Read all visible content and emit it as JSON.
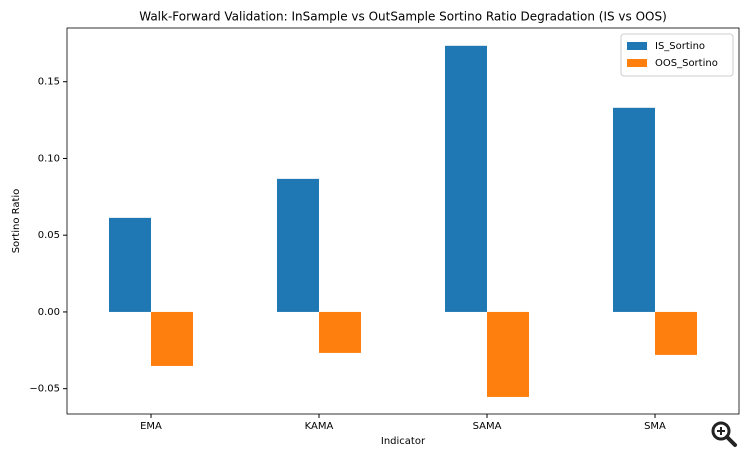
{
  "chart_data": {
    "type": "bar",
    "title": "Walk-Forward Validation: InSample vs OutSample Sortino Ratio Degradation (IS vs OOS)",
    "x_label": "Indicator",
    "y_label": "Sortino Ratio",
    "categories": [
      "EMA",
      "KAMA",
      "SAMA",
      "SMA"
    ],
    "series": [
      {
        "name": "IS_Sortino",
        "color": "#1f77b4",
        "values": [
          0.0613,
          0.0867,
          0.1734,
          0.133
        ]
      },
      {
        "name": "OOS_Sortino",
        "color": "#ff7f0e",
        "values": [
          -0.0352,
          -0.0267,
          -0.0554,
          -0.028
        ]
      }
    ],
    "ylim": [
      -0.0665,
      0.185
    ],
    "yticks": [
      {
        "value": -0.05,
        "label": "−0.05"
      },
      {
        "value": 0,
        "label": "0.00"
      },
      {
        "value": 0.05,
        "label": "0.05"
      },
      {
        "value": 0.1,
        "label": "0.10"
      },
      {
        "value": 0.15,
        "label": "0.15"
      }
    ],
    "legend": "upper right",
    "grid": false
  }
}
